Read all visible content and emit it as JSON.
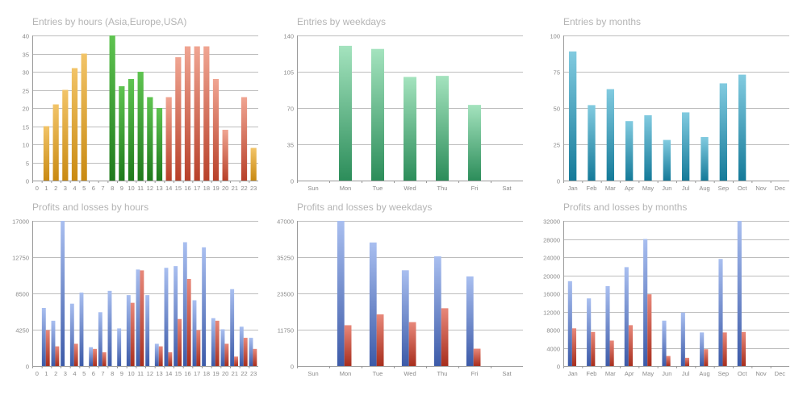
{
  "colors": {
    "asia": [
      "#f2c468",
      "#c98a12"
    ],
    "europe": [
      "#5fc451",
      "#1f7a1c"
    ],
    "usa": [
      "#f0a592",
      "#b8412a"
    ],
    "weekday": [
      "#a4e3be",
      "#2c8d5a"
    ],
    "month": [
      "#82cbe0",
      "#147a99"
    ],
    "profit": [
      "#a9bff0",
      "#3c5aa8"
    ],
    "loss": [
      "#e8887a",
      "#a82e1d"
    ]
  },
  "chart_data": [
    {
      "id": "hours",
      "type": "bar",
      "title": "Entries by hours (Asia,Europe,USA)",
      "categories": [
        "0",
        "1",
        "2",
        "3",
        "4",
        "5",
        "6",
        "7",
        "8",
        "9",
        "10",
        "11",
        "12",
        "13",
        "14",
        "15",
        "16",
        "17",
        "18",
        "19",
        "20",
        "21",
        "22",
        "23"
      ],
      "ylim": [
        0,
        40
      ],
      "yticks": [
        0,
        5,
        10,
        15,
        20,
        25,
        30,
        35,
        40
      ],
      "series": [
        {
          "color_key": "asia",
          "values": [
            0,
            15,
            21,
            25,
            31,
            35,
            0,
            0,
            null,
            null,
            null,
            null,
            null,
            null,
            null,
            null,
            null,
            null,
            null,
            null,
            null,
            null,
            null,
            9
          ]
        },
        {
          "color_key": "europe",
          "values": [
            null,
            null,
            null,
            null,
            null,
            null,
            null,
            null,
            40,
            26,
            28,
            30,
            23,
            20,
            null,
            null,
            null,
            null,
            null,
            null,
            null,
            null,
            null,
            null
          ]
        },
        {
          "color_key": "usa",
          "values": [
            null,
            null,
            null,
            null,
            null,
            null,
            null,
            null,
            null,
            null,
            null,
            null,
            null,
            null,
            23,
            34,
            37,
            37,
            37,
            28,
            14,
            0,
            23,
            null
          ]
        }
      ]
    },
    {
      "id": "weekdays",
      "type": "bar",
      "title": "Entries by weekdays",
      "categories": [
        "Sun",
        "Mon",
        "Tue",
        "Wed",
        "Thu",
        "Fri",
        "Sat"
      ],
      "ylim": [
        0,
        140
      ],
      "yticks": [
        0,
        35,
        70,
        105,
        140
      ],
      "series": [
        {
          "color_key": "weekday",
          "values": [
            0,
            130,
            127,
            100,
            101,
            73,
            0
          ]
        }
      ]
    },
    {
      "id": "months",
      "type": "bar",
      "title": "Entries by months",
      "categories": [
        "Jan",
        "Feb",
        "Mar",
        "Apr",
        "May",
        "Jun",
        "Jul",
        "Aug",
        "Sep",
        "Oct",
        "Nov",
        "Dec"
      ],
      "ylim": [
        0,
        100
      ],
      "yticks": [
        0,
        25,
        50,
        75,
        100
      ],
      "series": [
        {
          "color_key": "month",
          "values": [
            89,
            52,
            63,
            41,
            45,
            28,
            47,
            30,
            67,
            73,
            0,
            0
          ]
        }
      ]
    },
    {
      "id": "pl-hours",
      "type": "bar",
      "title": "Profits and losses by hours",
      "categories": [
        "0",
        "1",
        "2",
        "3",
        "4",
        "5",
        "6",
        "7",
        "8",
        "9",
        "10",
        "11",
        "12",
        "13",
        "14",
        "15",
        "16",
        "17",
        "18",
        "19",
        "20",
        "21",
        "22",
        "23"
      ],
      "ylim": [
        0,
        17000
      ],
      "yticks": [
        0,
        4250,
        8500,
        12750,
        17000
      ],
      "series": [
        {
          "color_key": "profit",
          "values": [
            0,
            6800,
            5300,
            17000,
            7300,
            8600,
            2200,
            6300,
            8800,
            4400,
            8300,
            11300,
            8300,
            2600,
            11500,
            11700,
            14500,
            7700,
            13900,
            5600,
            4300,
            9000,
            4600,
            3300
          ]
        },
        {
          "color_key": "loss",
          "values": [
            0,
            4200,
            2300,
            0,
            2600,
            0,
            2000,
            1600,
            0,
            0,
            7400,
            11200,
            0,
            2300,
            1600,
            5500,
            10200,
            4200,
            0,
            5300,
            2600,
            1100,
            3300,
            2000
          ]
        }
      ]
    },
    {
      "id": "pl-weekdays",
      "type": "bar",
      "title": "Profits and losses by weekdays",
      "categories": [
        "Sun",
        "Mon",
        "Tue",
        "Wed",
        "Thu",
        "Fri",
        "Sat"
      ],
      "ylim": [
        0,
        47000
      ],
      "yticks": [
        0,
        11750,
        23500,
        35250,
        47000
      ],
      "series": [
        {
          "color_key": "profit",
          "values": [
            0,
            47000,
            40000,
            31000,
            35500,
            29000,
            0
          ]
        },
        {
          "color_key": "loss",
          "values": [
            0,
            13200,
            16700,
            14200,
            18700,
            5600,
            0
          ]
        }
      ]
    },
    {
      "id": "pl-months",
      "type": "bar",
      "title": "Profits and losses by months",
      "categories": [
        "Jan",
        "Feb",
        "Mar",
        "Apr",
        "May",
        "Jun",
        "Jul",
        "Aug",
        "Sep",
        "Oct",
        "Nov",
        "Dec"
      ],
      "ylim": [
        0,
        32000
      ],
      "yticks": [
        0,
        4000,
        8000,
        12000,
        16000,
        20000,
        24000,
        28000,
        32000
      ],
      "series": [
        {
          "color_key": "profit",
          "values": [
            18700,
            14900,
            17600,
            21800,
            28000,
            10000,
            11800,
            7400,
            23600,
            32000,
            0,
            0
          ]
        },
        {
          "color_key": "loss",
          "values": [
            8300,
            7500,
            5600,
            9000,
            15800,
            2200,
            1800,
            3700,
            7400,
            7500,
            0,
            0
          ]
        }
      ]
    }
  ]
}
